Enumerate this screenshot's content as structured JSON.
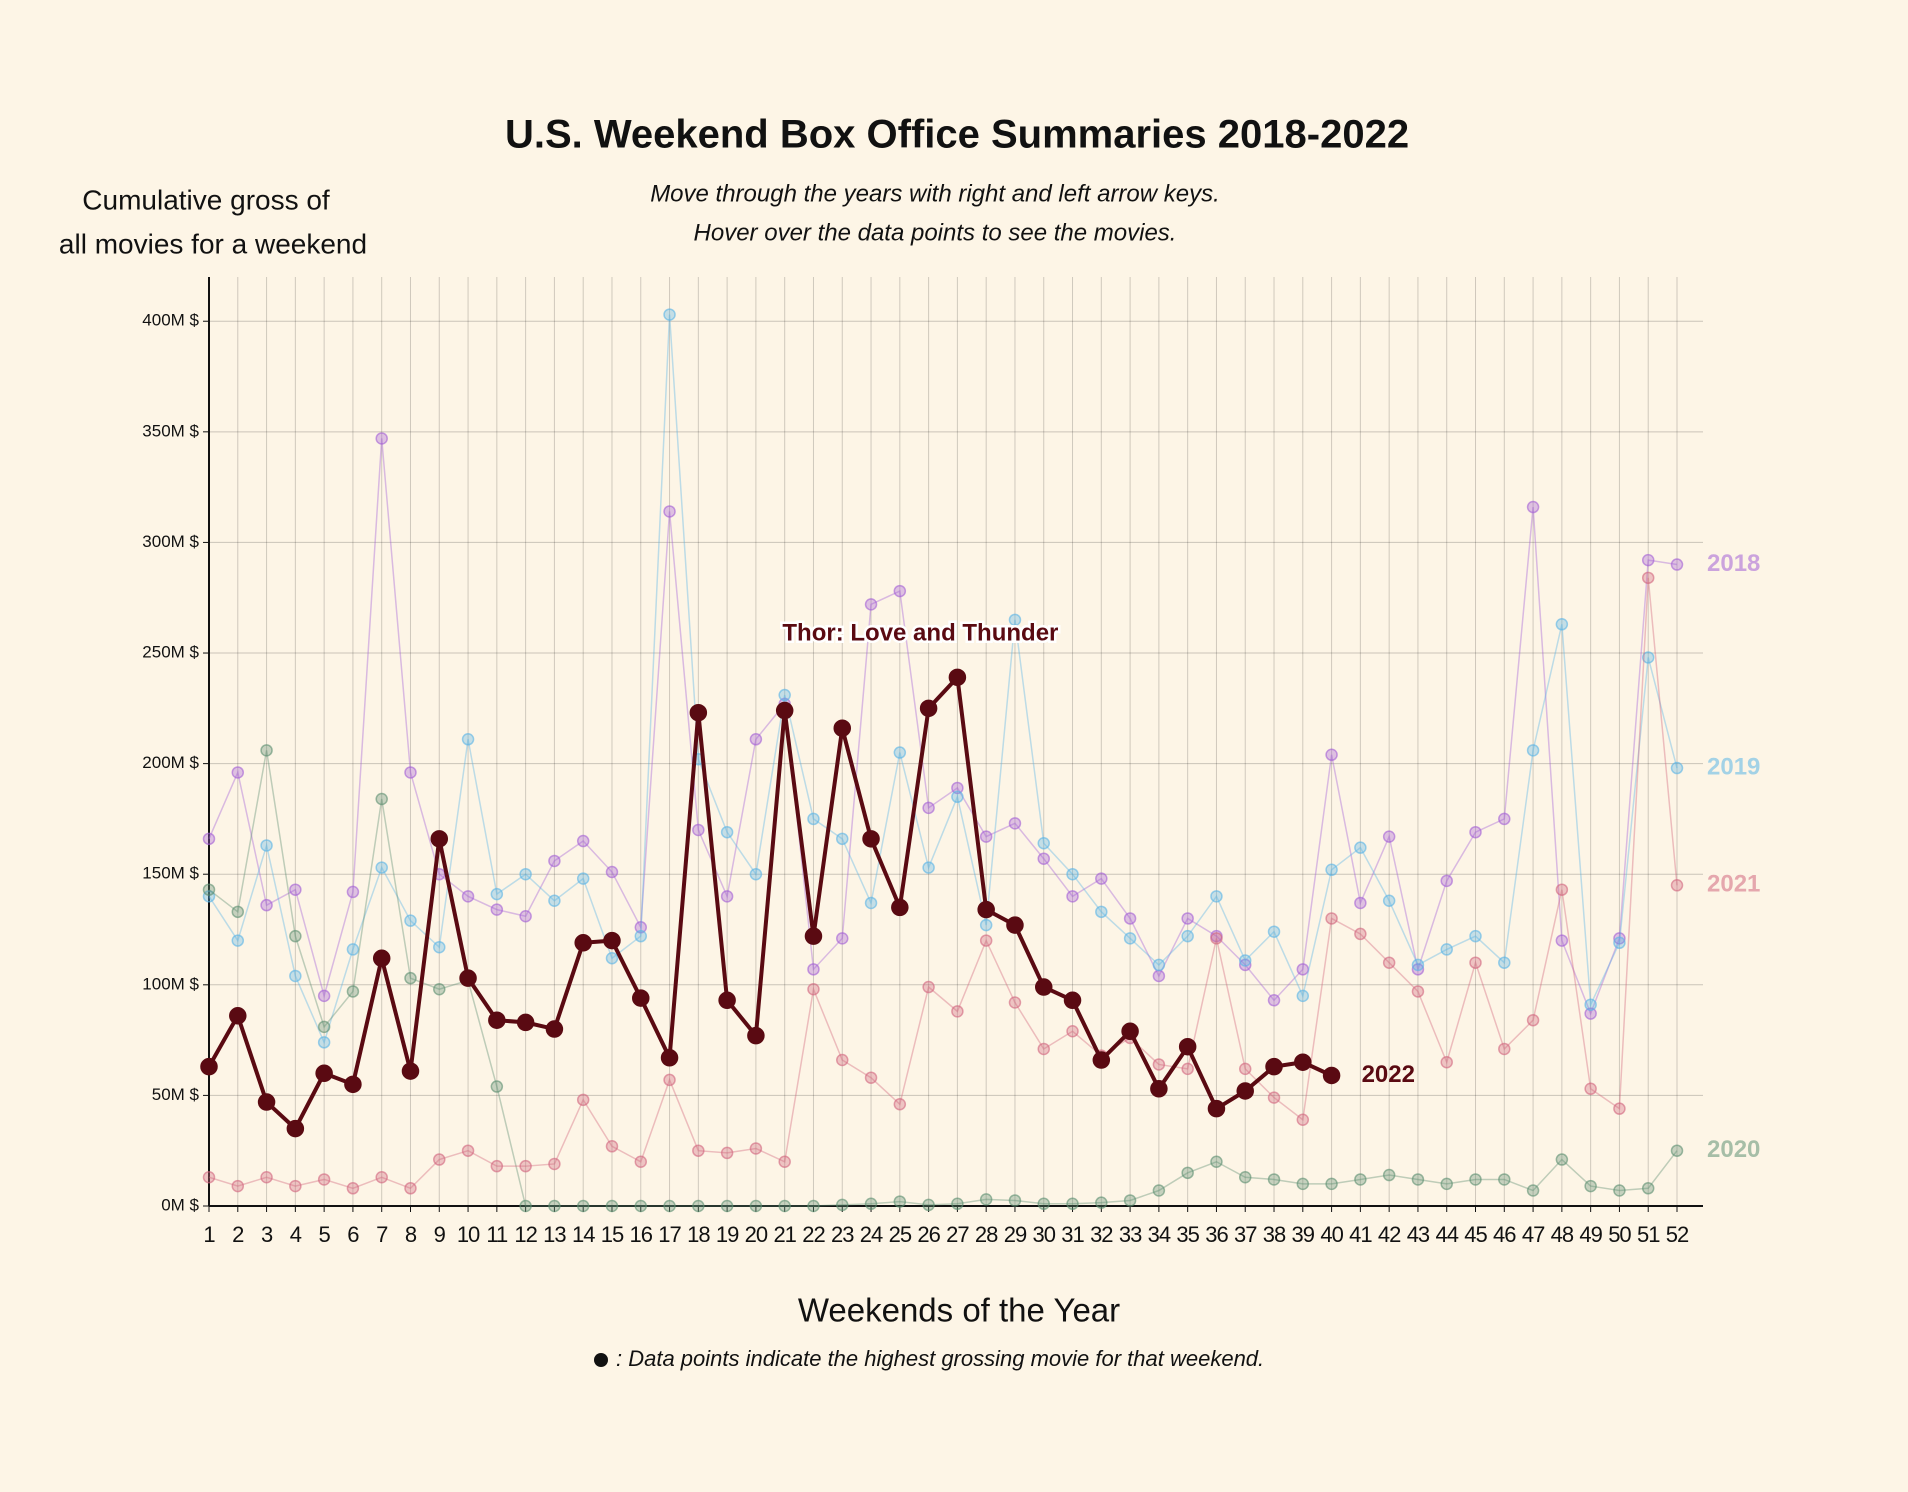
{
  "chart_data": {
    "type": "line",
    "title": "U.S. Weekend Box Office Summaries 2018-2022",
    "subtitle": [
      "Move through the years with right and left arrow keys.",
      "Hover over the data points to see the movies."
    ],
    "y_axis_label": [
      "Cumulative gross of",
      "all movies for a weekend"
    ],
    "x_axis_label": "Weekends of the Year",
    "footnote": ": Data points indicate the highest grossing movie for that weekend.",
    "annotations": [
      {
        "text": "Thor: Love and Thunder",
        "series": "2022",
        "category": "27"
      }
    ],
    "categories": [
      "1",
      "2",
      "3",
      "4",
      "5",
      "6",
      "7",
      "8",
      "9",
      "10",
      "11",
      "12",
      "13",
      "14",
      "15",
      "16",
      "17",
      "18",
      "19",
      "20",
      "21",
      "22",
      "23",
      "24",
      "25",
      "26",
      "27",
      "28",
      "29",
      "30",
      "31",
      "32",
      "33",
      "34",
      "35",
      "36",
      "37",
      "38",
      "39",
      "40",
      "41",
      "42",
      "43",
      "44",
      "45",
      "46",
      "47",
      "48",
      "49",
      "50",
      "51",
      "52"
    ],
    "ylim": [
      0,
      420
    ],
    "yticks": [
      {
        "value": 0,
        "label": "0M $"
      },
      {
        "value": 50,
        "label": "50M $"
      },
      {
        "value": 100,
        "label": "100M $"
      },
      {
        "value": 150,
        "label": "150M $"
      },
      {
        "value": 200,
        "label": "200M $"
      },
      {
        "value": 250,
        "label": "250M $"
      },
      {
        "value": 300,
        "label": "300M $"
      },
      {
        "value": 350,
        "label": "350M $"
      },
      {
        "value": 400,
        "label": "400M $"
      }
    ],
    "grid": true,
    "highlight": "2022",
    "series": [
      {
        "name": "2018",
        "color": "#a35fd6",
        "values": [
          166,
          196,
          136,
          143,
          95,
          142,
          347,
          196,
          150,
          140,
          134,
          131,
          156,
          165,
          151,
          126,
          314,
          170,
          140,
          211,
          227,
          107,
          121,
          272,
          278,
          180,
          189,
          167,
          173,
          157,
          140,
          148,
          130,
          104,
          130,
          122,
          109,
          93,
          107,
          204,
          137,
          167,
          107,
          147,
          169,
          175,
          316,
          120,
          87,
          121,
          292,
          290
        ]
      },
      {
        "name": "2019",
        "color": "#5ab4e6",
        "values": [
          140,
          120,
          163,
          104,
          74,
          116,
          153,
          129,
          117,
          211,
          141,
          150,
          138,
          148,
          112,
          122,
          403,
          202,
          169,
          150,
          231,
          175,
          166,
          137,
          205,
          153,
          185,
          127,
          265,
          164,
          150,
          133,
          121,
          109,
          122,
          140,
          111,
          124,
          95,
          152,
          162,
          138,
          109,
          116,
          122,
          110,
          206,
          263,
          91,
          119,
          248,
          198
        ]
      },
      {
        "name": "2020",
        "color": "#5e8f72",
        "values": [
          143,
          133,
          206,
          122,
          81,
          97,
          184,
          103,
          98,
          102,
          54,
          0,
          0,
          0,
          0,
          0,
          0,
          0,
          0,
          0,
          0,
          0,
          0.5,
          1,
          2,
          0.5,
          1,
          3,
          2.5,
          1,
          1,
          1.5,
          2.5,
          7,
          15,
          20,
          13,
          12,
          10,
          10,
          12,
          14,
          12,
          10,
          12,
          12,
          7,
          21,
          9,
          7,
          8,
          25
        ]
      },
      {
        "name": "2021",
        "color": "#d2667e",
        "values": [
          13,
          9,
          13,
          9,
          12,
          8,
          13,
          8,
          21,
          25,
          18,
          18,
          19,
          48,
          27,
          20,
          57,
          25,
          24,
          26,
          20,
          98,
          66,
          58,
          46,
          99,
          88,
          120,
          92,
          71,
          79,
          68,
          76,
          64,
          62,
          121,
          62,
          49,
          39,
          130,
          123,
          110,
          97,
          65,
          110,
          71,
          84,
          143,
          53,
          44,
          284,
          145
        ]
      },
      {
        "name": "2022",
        "color": "#5a0a12",
        "values": [
          63,
          86,
          47,
          35,
          60,
          55,
          112,
          61,
          166,
          103,
          84,
          83,
          80,
          119,
          120,
          94,
          67,
          223,
          93,
          77,
          224,
          122,
          216,
          166,
          135,
          225,
          239,
          134,
          127,
          99,
          93,
          66,
          79,
          53,
          72,
          44,
          52,
          63,
          65,
          59,
          null,
          null,
          null,
          null,
          null,
          null,
          null,
          null,
          null,
          null,
          null,
          null
        ]
      }
    ]
  }
}
